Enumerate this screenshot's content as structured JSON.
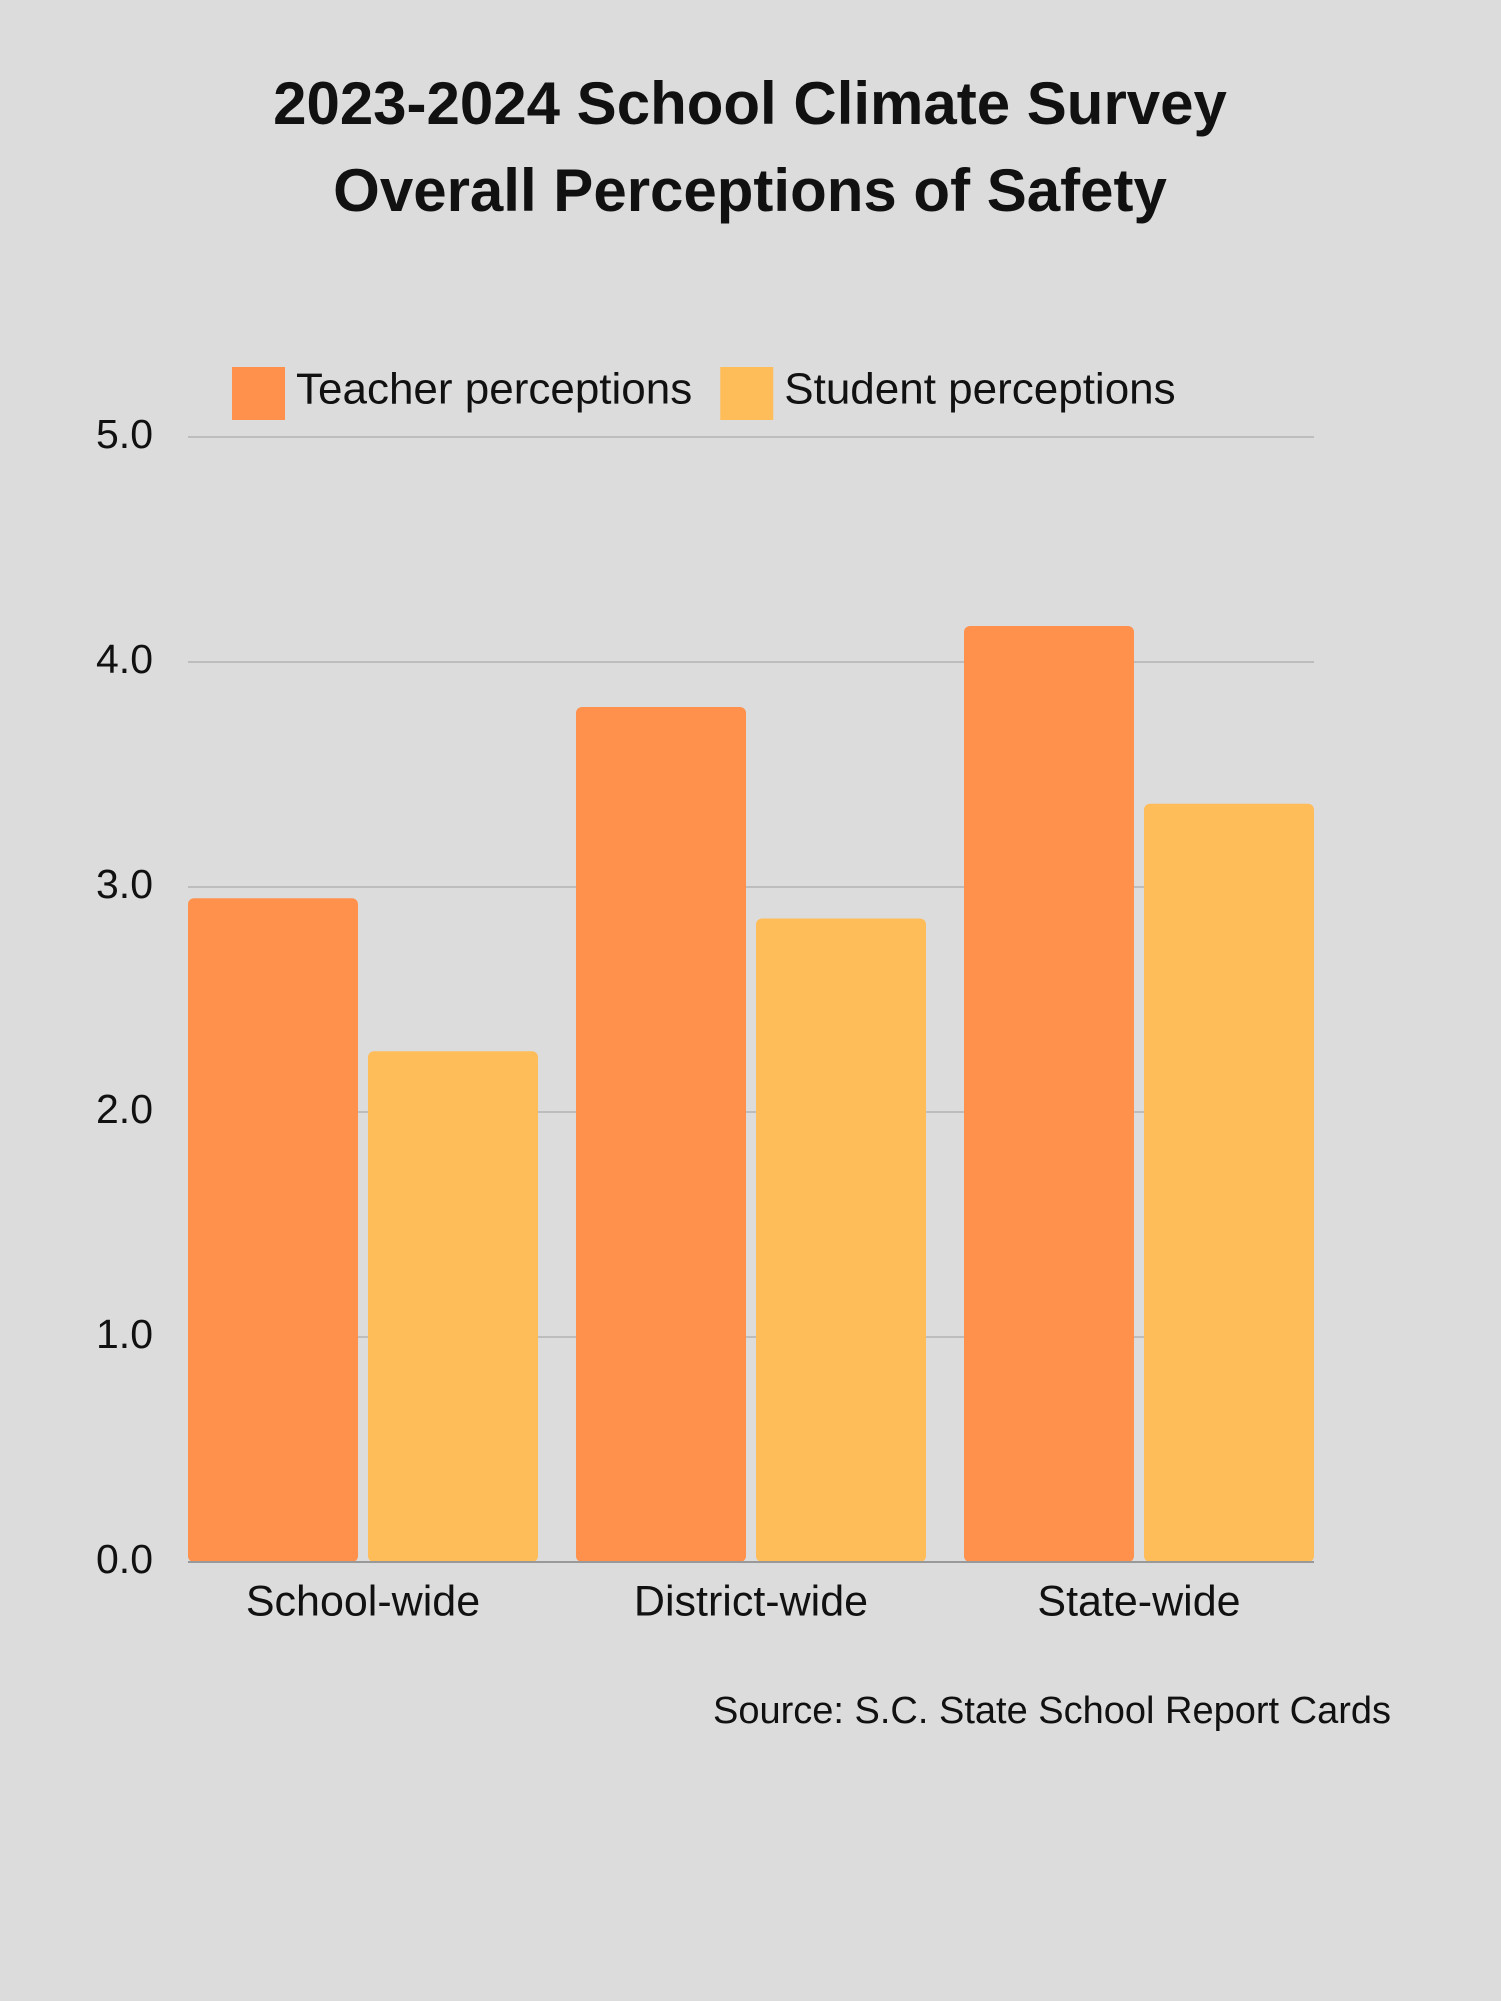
{
  "chart_data": {
    "type": "bar",
    "title": [
      "2023-2024 School Climate Survey",
      "Overall Perceptions of Safety"
    ],
    "source": "Source: S.C. State School Report Cards",
    "categories": [
      "School-wide",
      "District-wide",
      "State-wide"
    ],
    "series": [
      {
        "name": "Teacher perceptions",
        "color": "#ff914d",
        "values": [
          2.95,
          3.8,
          4.16
        ]
      },
      {
        "name": "Student perceptions",
        "color": "#ffbd59",
        "values": [
          2.27,
          2.86,
          3.37
        ]
      }
    ],
    "ylim": [
      0,
      5
    ],
    "yticks": [
      {
        "value": 0,
        "label": "0.0"
      },
      {
        "value": 1,
        "label": "1.0"
      },
      {
        "value": 2,
        "label": "2.0"
      },
      {
        "value": 3,
        "label": "3.0"
      },
      {
        "value": 4,
        "label": "4.0"
      },
      {
        "value": 5,
        "label": "5.0"
      }
    ],
    "grid": true,
    "legend": "top"
  }
}
